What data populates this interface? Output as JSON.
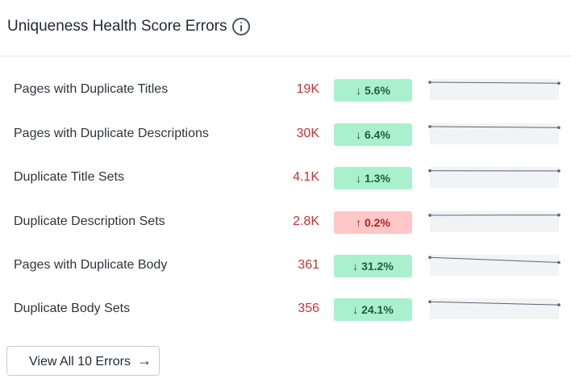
{
  "widget": {
    "title": "Uniqueness Health Score Errors",
    "info_icon": "info-circle-icon"
  },
  "rows": [
    {
      "label": "Pages with Duplicate Titles",
      "value": "19K",
      "trend": "↓ 5.6%",
      "direction": "down",
      "spark": [
        0.75,
        0.7
      ]
    },
    {
      "label": "Pages with Duplicate Descriptions",
      "value": "30K",
      "trend": "↓ 6.4%",
      "direction": "down",
      "spark": [
        0.75,
        0.7
      ]
    },
    {
      "label": "Duplicate Title Sets",
      "value": "4.1K",
      "trend": "↓ 1.3%",
      "direction": "down",
      "spark": [
        0.72,
        0.71
      ]
    },
    {
      "label": "Duplicate Description Sets",
      "value": "2.8K",
      "trend": "↑ 0.2%",
      "direction": "up",
      "spark": [
        0.71,
        0.72
      ]
    },
    {
      "label": "Pages with Duplicate Body",
      "value": "361",
      "trend": "↓ 31.2%",
      "direction": "down",
      "spark": [
        0.78,
        0.52
      ]
    },
    {
      "label": "Duplicate Body Sets",
      "value": "356",
      "trend": "↓ 24.1%",
      "direction": "down",
      "spark": [
        0.74,
        0.58
      ]
    }
  ],
  "footer": {
    "button_label": "View All 10 Errors",
    "arrow": "→"
  },
  "colors": {
    "value_red": "#d32f2f",
    "badge_down_bg": "#a9f0cd",
    "badge_up_bg": "#ffc7c7",
    "spark_bg": "#f2f3f5",
    "spark_line": "#5b6575"
  }
}
